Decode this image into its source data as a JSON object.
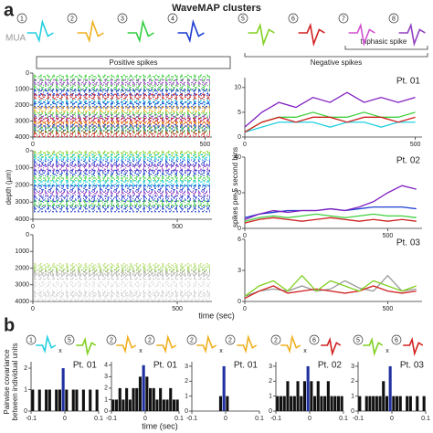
{
  "panel_a": {
    "label": "a",
    "title": "WaveMAP clusters",
    "mua": "MUA",
    "clusters": [
      {
        "label": "1",
        "color": "#22cfe0"
      },
      {
        "label": "2",
        "color": "#f0b020"
      },
      {
        "label": "3",
        "color": "#30d040"
      },
      {
        "label": "4",
        "color": "#1a3ad0"
      },
      {
        "label": "5",
        "color": "#80d020"
      },
      {
        "label": "6",
        "color": "#d02020"
      },
      {
        "label": "7",
        "color": "#d050d0"
      },
      {
        "label": "8",
        "color": "#9040c0"
      }
    ],
    "positive": "Positive spikes",
    "negative": "Negative spikes",
    "triphasic": "triphasic spike",
    "depth_label": "depth (µm)",
    "rate_label": "spikes per 5 second bins",
    "time_label": "time (sec)"
  },
  "panel_b": {
    "label": "b",
    "times": "x",
    "time_label": "time (sec)",
    "ylabel": [
      "Pairwise covariance",
      "between individual units"
    ],
    "pairs": [
      [
        "1",
        "5"
      ],
      [
        "2",
        "2"
      ],
      [
        "2",
        "2"
      ],
      [
        "2",
        "6"
      ],
      [
        "5",
        "6"
      ]
    ]
  },
  "chart_data": [
    {
      "type": "raster",
      "xlim": [
        0,
        520
      ],
      "xticks": [
        0,
        500
      ],
      "ylim": [
        4000,
        0
      ],
      "yticks": [
        0,
        1000,
        2000,
        3000,
        4000
      ],
      "units": [
        {
          "depth": 300,
          "color": "#40d040"
        },
        {
          "depth": 600,
          "color": "#9040c0"
        },
        {
          "depth": 900,
          "color": "#40d040"
        },
        {
          "depth": 1200,
          "color": "#1a3ad0"
        },
        {
          "depth": 1500,
          "color": "#d02020"
        },
        {
          "depth": 1800,
          "color": "#22cfe0"
        },
        {
          "depth": 2000,
          "color": "#1a3ad0"
        },
        {
          "depth": 2300,
          "color": "#f0b020"
        },
        {
          "depth": 2600,
          "color": "#40d040"
        },
        {
          "depth": 2800,
          "color": "#9040c0"
        },
        {
          "depth": 3000,
          "color": "#d02020"
        },
        {
          "depth": 3200,
          "color": "#f0b020"
        },
        {
          "depth": 3400,
          "color": "#1a3ad0"
        },
        {
          "depth": 3600,
          "color": "#40d040"
        },
        {
          "depth": 3800,
          "color": "#d02020"
        }
      ]
    },
    {
      "type": "raster",
      "xlim": [
        0,
        620
      ],
      "xticks": [
        0,
        500
      ],
      "ylim": [
        4000,
        0
      ],
      "yticks": [
        0,
        1000,
        2000,
        3000,
        4000
      ],
      "units": [
        {
          "depth": 200,
          "color": "#80d020"
        },
        {
          "depth": 400,
          "color": "#22cfe0"
        },
        {
          "depth": 700,
          "color": "#1a3ad0"
        },
        {
          "depth": 1000,
          "color": "#9040c0"
        },
        {
          "depth": 1300,
          "color": "#1a3ad0"
        },
        {
          "depth": 1600,
          "color": "#40d040"
        },
        {
          "depth": 1900,
          "color": "#22cfe0"
        },
        {
          "depth": 2200,
          "color": "#1a3ad0"
        },
        {
          "depth": 2500,
          "color": "#9040c0"
        },
        {
          "depth": 2800,
          "color": "#1a3ad0"
        },
        {
          "depth": 3100,
          "color": "#40d040"
        },
        {
          "depth": 3400,
          "color": "#1a3ad0"
        }
      ]
    },
    {
      "type": "raster",
      "xlim": [
        0,
        620
      ],
      "xticks": [
        0,
        500
      ],
      "ylim": [
        4000,
        0
      ],
      "yticks": [
        0,
        1000,
        2000,
        3000,
        4000
      ],
      "units": [
        {
          "depth": 1900,
          "color": "#b8e070"
        },
        {
          "depth": 2100,
          "color": "#a0d860"
        },
        {
          "depth": 2300,
          "color": "#aaaaaa"
        },
        {
          "depth": 2500,
          "color": "#cccccc"
        },
        {
          "depth": 3000,
          "color": "#dddddd"
        },
        {
          "depth": 3500,
          "color": "#cccccc"
        },
        {
          "depth": 3800,
          "color": "#dddddd"
        }
      ]
    },
    {
      "type": "line",
      "title": "Pt. 01",
      "x": [
        0,
        50,
        100,
        150,
        200,
        250,
        300,
        350,
        400,
        450,
        500
      ],
      "xlim": [
        0,
        520
      ],
      "xticks": [
        0,
        500
      ],
      "ylim": [
        0,
        12
      ],
      "yticks": [
        0,
        5,
        10
      ],
      "series": [
        {
          "color": "#40d040",
          "values": [
            1,
            3,
            4,
            4,
            5,
            4,
            4,
            5,
            4,
            4,
            5
          ]
        },
        {
          "color": "#22cfe0",
          "values": [
            1,
            2,
            3,
            3,
            3,
            2,
            3,
            3,
            2,
            3,
            3
          ]
        },
        {
          "color": "#d02020",
          "values": [
            1,
            3,
            4,
            3,
            4,
            4,
            3,
            4,
            4,
            3,
            4
          ]
        },
        {
          "color": "#8020c0",
          "values": [
            2,
            5,
            7,
            6,
            8,
            7,
            9,
            7,
            8,
            7,
            8
          ]
        }
      ]
    },
    {
      "type": "line",
      "title": "Pt. 02",
      "x": [
        0,
        50,
        100,
        150,
        200,
        250,
        300,
        350,
        400,
        450,
        500,
        550,
        600
      ],
      "xlim": [
        0,
        620
      ],
      "xticks": [
        0,
        500
      ],
      "ylim": [
        0,
        40
      ],
      "yticks": [
        0,
        20,
        40
      ],
      "series": [
        {
          "color": "#40d040",
          "values": [
            4,
            6,
            7,
            6,
            7,
            8,
            7,
            6,
            7,
            8,
            7,
            7,
            6
          ]
        },
        {
          "color": "#d02020",
          "values": [
            3,
            5,
            6,
            5,
            4,
            5,
            6,
            5,
            4,
            5,
            4,
            5,
            4
          ]
        },
        {
          "color": "#2040d0",
          "values": [
            6,
            8,
            9,
            10,
            10,
            10,
            11,
            10,
            11,
            12,
            12,
            12,
            11
          ]
        },
        {
          "color": "#8020c0",
          "values": [
            5,
            8,
            10,
            9,
            10,
            10,
            11,
            10,
            12,
            15,
            20,
            24,
            22
          ]
        }
      ]
    },
    {
      "type": "line",
      "title": "Pt. 03",
      "x": [
        0,
        50,
        100,
        150,
        200,
        250,
        300,
        350,
        400,
        450,
        500,
        550,
        600
      ],
      "xlim": [
        0,
        620
      ],
      "xticks": [
        0,
        500
      ],
      "ylim": [
        0,
        6
      ],
      "yticks": [
        0,
        3,
        6
      ],
      "series": [
        {
          "color": "#999999",
          "values": [
            0.5,
            1,
            1.2,
            1,
            1.5,
            1,
            1.2,
            2,
            1.3,
            1,
            2.5,
            1,
            1.2
          ]
        },
        {
          "color": "#d02020",
          "values": [
            0.3,
            1,
            1.5,
            0.8,
            1,
            1.2,
            1,
            0.8,
            1,
            1.5,
            1,
            0.8,
            1
          ]
        },
        {
          "color": "#80d020",
          "values": [
            0.5,
            1.5,
            2,
            1,
            2.5,
            1,
            2,
            1.5,
            1,
            2,
            1.5,
            1,
            1.5
          ]
        }
      ]
    },
    {
      "type": "histogram",
      "title": "Pt. 01",
      "color": "#111111",
      "peak_color": "#2030a0",
      "bins": [
        -0.1,
        -0.09,
        -0.08,
        -0.07,
        -0.06,
        -0.05,
        -0.04,
        -0.03,
        -0.02,
        -0.01,
        0,
        0.01,
        0.02,
        0.03,
        0.04,
        0.05,
        0.06,
        0.07,
        0.08,
        0.09,
        0.1
      ],
      "counts": [
        1,
        0,
        1,
        0,
        1,
        1,
        0,
        1,
        1,
        2,
        1,
        0,
        1,
        1,
        0,
        1,
        0,
        1,
        0,
        1
      ],
      "xlim": [
        -0.1,
        0.1
      ],
      "xticks": [
        -0.1,
        0,
        0.1
      ],
      "ylim": [
        0,
        2.3
      ],
      "yticks": [
        0,
        1,
        2
      ]
    },
    {
      "type": "histogram",
      "title": "Pt. 01",
      "color": "#111111",
      "peak_color": "#2030a0",
      "bins": [
        -0.1,
        -0.09,
        -0.08,
        -0.07,
        -0.06,
        -0.05,
        -0.04,
        -0.03,
        -0.02,
        -0.01,
        0,
        0.01,
        0.02,
        0.03,
        0.04,
        0.05,
        0.06,
        0.07,
        0.08,
        0.09,
        0.1
      ],
      "counts": [
        1,
        1,
        2,
        1,
        2,
        1,
        2,
        2,
        3,
        4,
        3,
        2,
        2,
        1,
        2,
        1,
        1,
        2,
        1,
        1
      ],
      "xlim": [
        -0.1,
        0.1
      ],
      "xticks": [
        -0.1,
        0,
        0.1
      ],
      "ylim": [
        0,
        4.3
      ],
      "yticks": [
        0,
        1,
        2,
        3,
        4
      ]
    },
    {
      "type": "histogram",
      "title": "Pt. 01",
      "color": "#111111",
      "peak_color": "#2030a0",
      "bins": [
        -0.1,
        -0.09,
        -0.08,
        -0.07,
        -0.06,
        -0.05,
        -0.04,
        -0.03,
        -0.02,
        -0.01,
        0,
        0.01,
        0.02,
        0.03,
        0.04,
        0.05,
        0.06,
        0.07,
        0.08,
        0.09,
        0.1
      ],
      "counts": [
        0,
        0,
        0,
        0,
        0,
        0,
        0,
        0,
        1,
        3,
        1,
        0,
        0,
        0,
        0,
        0,
        0,
        0,
        0,
        0
      ],
      "xlim": [
        -0.1,
        0.1
      ],
      "xticks": [
        -0.1,
        0,
        0.1
      ],
      "ylim": [
        0,
        3.3
      ],
      "yticks": [
        0,
        1,
        2,
        3
      ]
    },
    {
      "type": "histogram",
      "title": "Pt. 02",
      "color": "#111111",
      "peak_color": "#2030a0",
      "bins": [
        -0.1,
        -0.09,
        -0.08,
        -0.07,
        -0.06,
        -0.05,
        -0.04,
        -0.03,
        -0.02,
        -0.01,
        0,
        0.01,
        0.02,
        0.03,
        0.04,
        0.05,
        0.06,
        0.07,
        0.08,
        0.09,
        0.1
      ],
      "counts": [
        1,
        1,
        1,
        2,
        1,
        1,
        2,
        1,
        2,
        3,
        2,
        1,
        2,
        1,
        1,
        2,
        1,
        1,
        1,
        1
      ],
      "xlim": [
        -0.1,
        0.1
      ],
      "xticks": [
        -0.1,
        0,
        0.1
      ],
      "ylim": [
        0,
        3.3
      ],
      "yticks": [
        0,
        1,
        2,
        3
      ]
    },
    {
      "type": "histogram",
      "title": "Pt. 03",
      "color": "#111111",
      "peak_color": "#2030a0",
      "bins": [
        -0.1,
        -0.09,
        -0.08,
        -0.07,
        -0.06,
        -0.05,
        -0.04,
        -0.03,
        -0.02,
        -0.01,
        0,
        0.01,
        0.02,
        0.03,
        0.04,
        0.05,
        0.06,
        0.07,
        0.08,
        0.09,
        0.1
      ],
      "counts": [
        1,
        0,
        1,
        1,
        1,
        1,
        1,
        2,
        1,
        3,
        1,
        1,
        1,
        0,
        1,
        1,
        0,
        1,
        0,
        1
      ],
      "xlim": [
        -0.1,
        0.1
      ],
      "xticks": [
        -0.1,
        0,
        0.1
      ],
      "ylim": [
        0,
        3.3
      ],
      "yticks": [
        0,
        1,
        2,
        3
      ]
    }
  ]
}
